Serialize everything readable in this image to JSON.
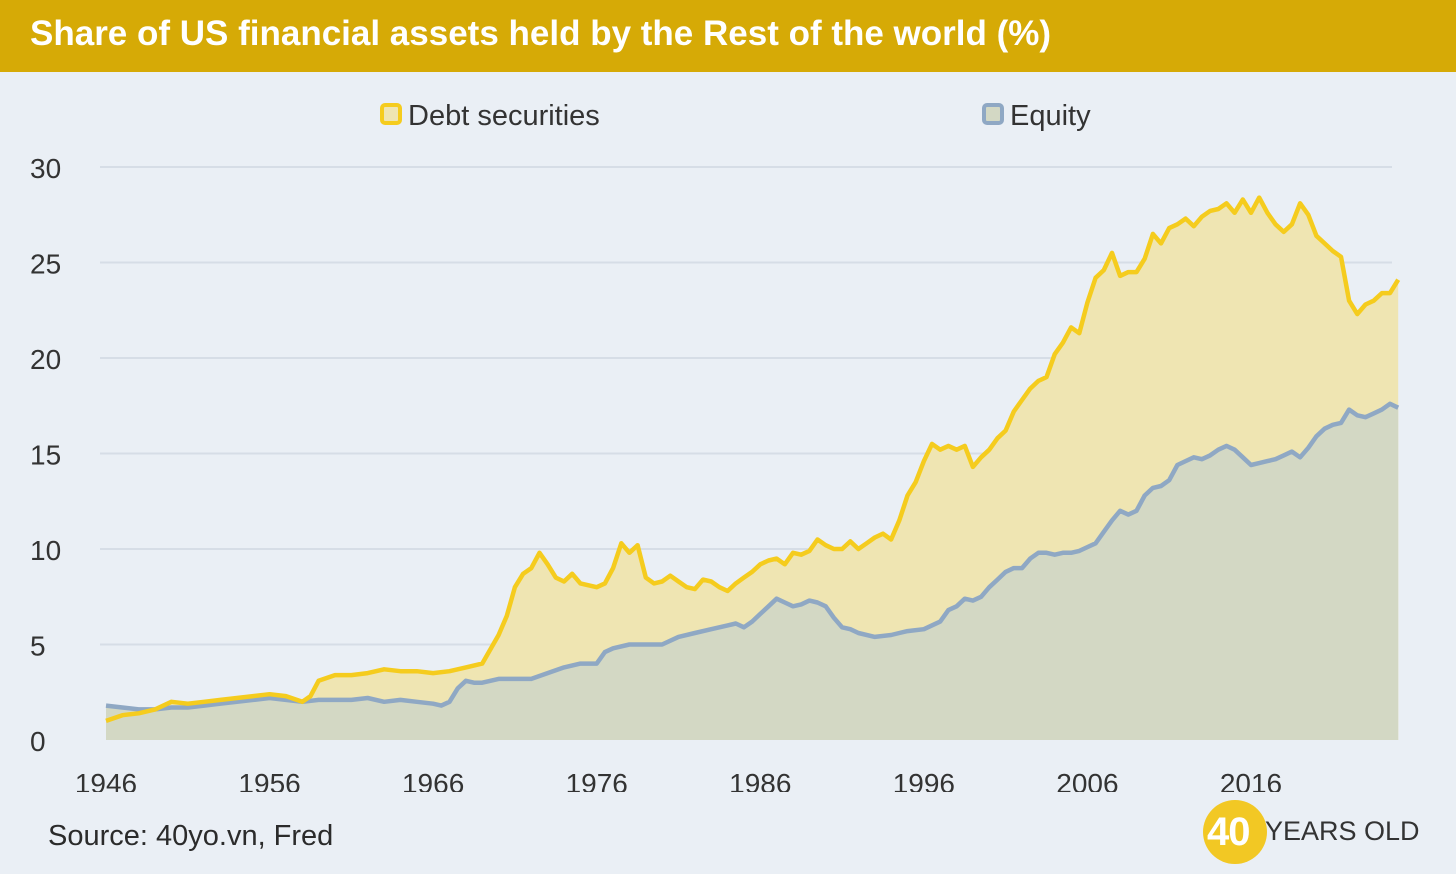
{
  "header": {
    "title": "Share of US financial assets held by the Rest of the world (%)"
  },
  "footer": {
    "source": "Source: 40yo.vn, Fred"
  },
  "logo": {
    "number": "40",
    "text": "YEARS OLD"
  },
  "colors": {
    "header_bg": "#d6aa06",
    "background": "#eaeff5",
    "debt_line": "#f5cc1e",
    "debt_fill": "#efe5b2",
    "equity_line": "#8fa8c4",
    "equity_fill": "#d3d8c4",
    "grid": "#d6dde6",
    "logo": "#f2c824"
  },
  "chart_data": {
    "type": "area",
    "title": "Share of US financial assets held by the Rest of the world (%)",
    "xlabel": "",
    "ylabel": "",
    "xlim": [
      1946,
      2024
    ],
    "ylim": [
      0,
      30
    ],
    "yticks": [
      "0",
      "5",
      "10",
      "15",
      "20",
      "25",
      "30"
    ],
    "xticks": [
      "1946",
      "1956",
      "1966",
      "1976",
      "1986",
      "1996",
      "2006",
      "2016"
    ],
    "grid": true,
    "legend": "top-center",
    "series": [
      {
        "name": "Debt securities",
        "color": "#f5cc1e",
        "points": [
          [
            1946,
            1.0
          ],
          [
            1947,
            1.3
          ],
          [
            1948,
            1.4
          ],
          [
            1949,
            1.6
          ],
          [
            1950,
            2.0
          ],
          [
            1951,
            1.9
          ],
          [
            1952,
            2.0
          ],
          [
            1953,
            2.1
          ],
          [
            1954,
            2.2
          ],
          [
            1955,
            2.3
          ],
          [
            1956,
            2.4
          ],
          [
            1957,
            2.3
          ],
          [
            1958,
            2.0
          ],
          [
            1958.5,
            2.3
          ],
          [
            1959,
            3.1
          ],
          [
            1960,
            3.4
          ],
          [
            1961,
            3.4
          ],
          [
            1962,
            3.5
          ],
          [
            1963,
            3.7
          ],
          [
            1964,
            3.6
          ],
          [
            1965,
            3.6
          ],
          [
            1966,
            3.5
          ],
          [
            1967,
            3.6
          ],
          [
            1968,
            3.8
          ],
          [
            1969,
            4.0
          ],
          [
            1970,
            5.5
          ],
          [
            1970.5,
            6.5
          ],
          [
            1971,
            8.0
          ],
          [
            1971.5,
            8.7
          ],
          [
            1972,
            9.0
          ],
          [
            1972.5,
            9.8
          ],
          [
            1973,
            9.2
          ],
          [
            1973.5,
            8.5
          ],
          [
            1974,
            8.3
          ],
          [
            1974.5,
            8.7
          ],
          [
            1975,
            8.2
          ],
          [
            1976,
            8.0
          ],
          [
            1976.5,
            8.2
          ],
          [
            1977,
            9.0
          ],
          [
            1977.5,
            10.3
          ],
          [
            1978,
            9.8
          ],
          [
            1978.5,
            10.2
          ],
          [
            1979,
            8.5
          ],
          [
            1979.5,
            8.2
          ],
          [
            1980,
            8.3
          ],
          [
            1980.5,
            8.6
          ],
          [
            1981,
            8.3
          ],
          [
            1981.5,
            8.0
          ],
          [
            1982,
            7.9
          ],
          [
            1982.5,
            8.4
          ],
          [
            1983,
            8.3
          ],
          [
            1983.5,
            8.0
          ],
          [
            1984,
            7.8
          ],
          [
            1984.5,
            8.2
          ],
          [
            1985,
            8.5
          ],
          [
            1985.5,
            8.8
          ],
          [
            1986,
            9.2
          ],
          [
            1986.5,
            9.4
          ],
          [
            1987,
            9.5
          ],
          [
            1987.5,
            9.2
          ],
          [
            1988,
            9.8
          ],
          [
            1988.5,
            9.7
          ],
          [
            1989,
            9.9
          ],
          [
            1989.5,
            10.5
          ],
          [
            1990,
            10.2
          ],
          [
            1990.5,
            10.0
          ],
          [
            1991,
            10.0
          ],
          [
            1991.5,
            10.4
          ],
          [
            1992,
            10.0
          ],
          [
            1992.5,
            10.3
          ],
          [
            1993,
            10.6
          ],
          [
            1993.5,
            10.8
          ],
          [
            1994,
            10.5
          ],
          [
            1994.5,
            11.5
          ],
          [
            1995,
            12.8
          ],
          [
            1995.5,
            13.5
          ],
          [
            1996,
            14.6
          ],
          [
            1996.5,
            15.5
          ],
          [
            1997,
            15.2
          ],
          [
            1997.5,
            15.4
          ],
          [
            1998,
            15.2
          ],
          [
            1998.5,
            15.4
          ],
          [
            1999,
            14.3
          ],
          [
            1999.5,
            14.8
          ],
          [
            2000,
            15.2
          ],
          [
            2000.5,
            15.8
          ],
          [
            2001,
            16.2
          ],
          [
            2001.5,
            17.2
          ],
          [
            2002,
            17.8
          ],
          [
            2002.5,
            18.4
          ],
          [
            2003,
            18.8
          ],
          [
            2003.5,
            19.0
          ],
          [
            2004,
            20.2
          ],
          [
            2004.5,
            20.8
          ],
          [
            2005,
            21.6
          ],
          [
            2005.5,
            21.3
          ],
          [
            2006,
            22.9
          ],
          [
            2006.5,
            24.2
          ],
          [
            2007,
            24.6
          ],
          [
            2007.5,
            25.5
          ],
          [
            2008,
            24.3
          ],
          [
            2008.5,
            24.5
          ],
          [
            2009,
            24.5
          ],
          [
            2009.5,
            25.2
          ],
          [
            2010,
            26.5
          ],
          [
            2010.5,
            26.0
          ],
          [
            2011,
            26.8
          ],
          [
            2011.5,
            27.0
          ],
          [
            2012,
            27.3
          ],
          [
            2012.5,
            26.9
          ],
          [
            2013,
            27.4
          ],
          [
            2013.5,
            27.7
          ],
          [
            2014,
            27.8
          ],
          [
            2014.5,
            28.1
          ],
          [
            2015,
            27.6
          ],
          [
            2015.5,
            28.3
          ],
          [
            2016,
            27.6
          ],
          [
            2016.5,
            28.4
          ],
          [
            2017,
            27.6
          ],
          [
            2017.5,
            27.0
          ],
          [
            2018,
            26.6
          ],
          [
            2018.5,
            27.0
          ],
          [
            2019,
            28.1
          ],
          [
            2019.5,
            27.5
          ],
          [
            2020,
            26.4
          ],
          [
            2020.5,
            26.0
          ],
          [
            2021,
            25.6
          ],
          [
            2021.5,
            25.3
          ],
          [
            2022,
            23.0
          ],
          [
            2022.5,
            22.3
          ],
          [
            2023,
            22.8
          ],
          [
            2023.5,
            23.0
          ],
          [
            2024,
            23.4
          ],
          [
            2024.5,
            23.4
          ],
          [
            2025,
            24.1
          ]
        ]
      },
      {
        "name": "Equity",
        "color": "#8fa8c4",
        "points": [
          [
            1946,
            1.8
          ],
          [
            1947,
            1.7
          ],
          [
            1948,
            1.6
          ],
          [
            1949,
            1.6
          ],
          [
            1950,
            1.7
          ],
          [
            1951,
            1.7
          ],
          [
            1952,
            1.8
          ],
          [
            1953,
            1.9
          ],
          [
            1954,
            2.0
          ],
          [
            1955,
            2.1
          ],
          [
            1956,
            2.2
          ],
          [
            1957,
            2.1
          ],
          [
            1958,
            2.0
          ],
          [
            1959,
            2.1
          ],
          [
            1960,
            2.1
          ],
          [
            1961,
            2.1
          ],
          [
            1962,
            2.2
          ],
          [
            1963,
            2.0
          ],
          [
            1964,
            2.1
          ],
          [
            1965,
            2.0
          ],
          [
            1966,
            1.9
          ],
          [
            1966.5,
            1.8
          ],
          [
            1967,
            2.0
          ],
          [
            1967.5,
            2.7
          ],
          [
            1968,
            3.1
          ],
          [
            1968.5,
            3.0
          ],
          [
            1969,
            3.0
          ],
          [
            1970,
            3.2
          ],
          [
            1971,
            3.2
          ],
          [
            1972,
            3.2
          ],
          [
            1973,
            3.5
          ],
          [
            1974,
            3.8
          ],
          [
            1975,
            4.0
          ],
          [
            1976,
            4.0
          ],
          [
            1976.5,
            4.6
          ],
          [
            1977,
            4.8
          ],
          [
            1978,
            5.0
          ],
          [
            1979,
            5.0
          ],
          [
            1980,
            5.0
          ],
          [
            1981,
            5.4
          ],
          [
            1982,
            5.6
          ],
          [
            1983,
            5.8
          ],
          [
            1984,
            6.0
          ],
          [
            1984.5,
            6.1
          ],
          [
            1985,
            5.9
          ],
          [
            1985.5,
            6.2
          ],
          [
            1986,
            6.6
          ],
          [
            1986.5,
            7.0
          ],
          [
            1987,
            7.4
          ],
          [
            1987.5,
            7.2
          ],
          [
            1988,
            7.0
          ],
          [
            1988.5,
            7.1
          ],
          [
            1989,
            7.3
          ],
          [
            1989.5,
            7.2
          ],
          [
            1990,
            7.0
          ],
          [
            1990.5,
            6.4
          ],
          [
            1991,
            5.9
          ],
          [
            1991.5,
            5.8
          ],
          [
            1992,
            5.6
          ],
          [
            1993,
            5.4
          ],
          [
            1994,
            5.5
          ],
          [
            1994.5,
            5.6
          ],
          [
            1995,
            5.7
          ],
          [
            1996,
            5.8
          ],
          [
            1997,
            6.2
          ],
          [
            1997.5,
            6.8
          ],
          [
            1998,
            7.0
          ],
          [
            1998.5,
            7.4
          ],
          [
            1999,
            7.3
          ],
          [
            1999.5,
            7.5
          ],
          [
            2000,
            8.0
          ],
          [
            2000.5,
            8.4
          ],
          [
            2001,
            8.8
          ],
          [
            2001.5,
            9.0
          ],
          [
            2002,
            9.0
          ],
          [
            2002.5,
            9.5
          ],
          [
            2003,
            9.8
          ],
          [
            2003.5,
            9.8
          ],
          [
            2004,
            9.7
          ],
          [
            2004.5,
            9.8
          ],
          [
            2005,
            9.8
          ],
          [
            2005.5,
            9.9
          ],
          [
            2006,
            10.1
          ],
          [
            2006.5,
            10.3
          ],
          [
            2007,
            10.9
          ],
          [
            2007.5,
            11.5
          ],
          [
            2008,
            12.0
          ],
          [
            2008.5,
            11.8
          ],
          [
            2009,
            12.0
          ],
          [
            2009.5,
            12.8
          ],
          [
            2010,
            13.2
          ],
          [
            2010.5,
            13.3
          ],
          [
            2011,
            13.6
          ],
          [
            2011.5,
            14.4
          ],
          [
            2012,
            14.6
          ],
          [
            2012.5,
            14.8
          ],
          [
            2013,
            14.7
          ],
          [
            2013.5,
            14.9
          ],
          [
            2014,
            15.2
          ],
          [
            2014.5,
            15.4
          ],
          [
            2015,
            15.2
          ],
          [
            2015.5,
            14.8
          ],
          [
            2016,
            14.4
          ],
          [
            2016.5,
            14.5
          ],
          [
            2017,
            14.6
          ],
          [
            2017.5,
            14.7
          ],
          [
            2018,
            14.9
          ],
          [
            2018.5,
            15.1
          ],
          [
            2019,
            14.8
          ],
          [
            2019.5,
            15.3
          ],
          [
            2020,
            15.9
          ],
          [
            2020.5,
            16.3
          ],
          [
            2021,
            16.5
          ],
          [
            2021.5,
            16.6
          ],
          [
            2022,
            17.3
          ],
          [
            2022.5,
            17.0
          ],
          [
            2023,
            16.9
          ],
          [
            2023.5,
            17.1
          ],
          [
            2024,
            17.3
          ],
          [
            2024.5,
            17.6
          ],
          [
            2025,
            17.4
          ]
        ]
      }
    ]
  }
}
